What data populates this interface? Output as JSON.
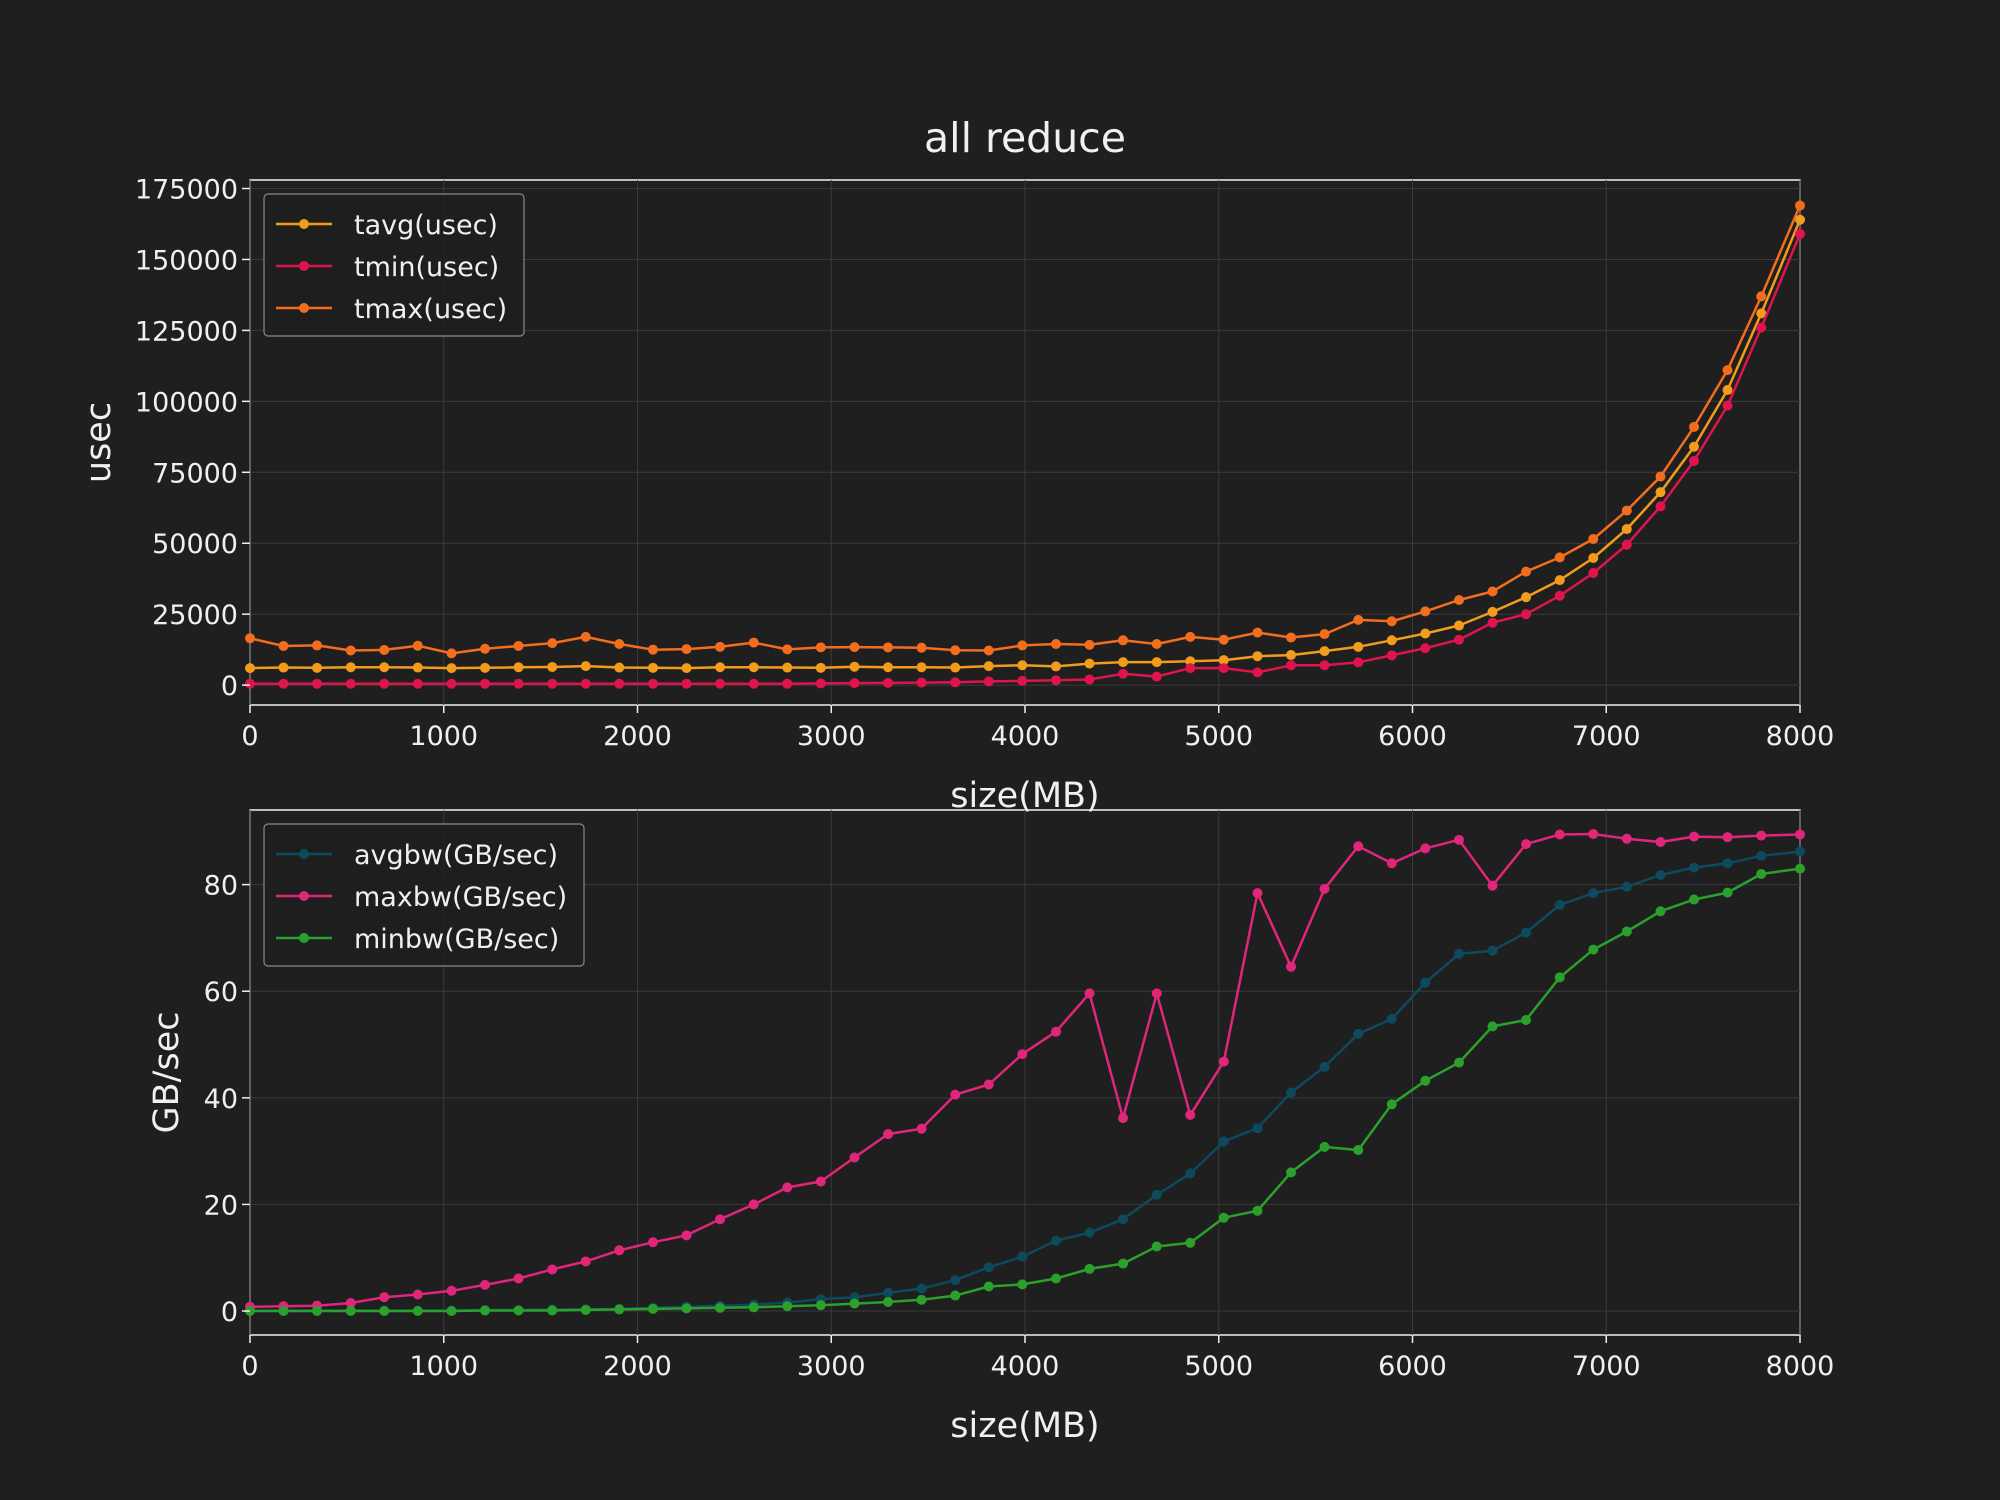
{
  "figure": {
    "title": "all reduce",
    "background": "#1f1f1f",
    "text_color": "#f0f0f0"
  },
  "chart_data": [
    {
      "type": "line",
      "xlabel": "size(MB)",
      "ylabel": "usec",
      "xlim": [
        0,
        8000
      ],
      "ylim": [
        -7000,
        178000
      ],
      "xticks": [
        0,
        1000,
        2000,
        3000,
        4000,
        5000,
        6000,
        7000,
        8000
      ],
      "yticks": [
        0,
        25000,
        50000,
        75000,
        100000,
        125000,
        150000,
        175000
      ],
      "grid": true,
      "legend_position": "top-left",
      "x": [
        0,
        173,
        346,
        520,
        693,
        866,
        1040,
        1213,
        1386,
        1560,
        1733,
        1906,
        2080,
        2253,
        2426,
        2600,
        2773,
        2946,
        3120,
        3293,
        3466,
        3640,
        3813,
        3986,
        4160,
        4333,
        4506,
        4680,
        4853,
        5026,
        5200,
        5373,
        5546,
        5720,
        5893,
        6066,
        6240,
        6413,
        6586,
        6760,
        6933,
        7106,
        7280,
        7453,
        7626,
        7800,
        8000
      ],
      "series": [
        {
          "name": "tavg(usec)",
          "color": "#f39c1b",
          "values": [
            6000,
            6200,
            6100,
            6300,
            6300,
            6200,
            6000,
            6100,
            6300,
            6400,
            6700,
            6200,
            6100,
            6000,
            6300,
            6300,
            6200,
            6100,
            6500,
            6300,
            6300,
            6200,
            6700,
            7000,
            6600,
            7600,
            8100,
            8100,
            8400,
            8800,
            10200,
            10600,
            12000,
            13500,
            15800,
            18200,
            21000,
            25800,
            31000,
            37000,
            44800,
            55000,
            68000,
            84000,
            104000,
            131000,
            164000
          ]
        },
        {
          "name": "tmin(usec)",
          "color": "#e0144c",
          "values": [
            500,
            500,
            500,
            500,
            500,
            500,
            500,
            500,
            500,
            500,
            500,
            500,
            500,
            500,
            500,
            500,
            500,
            600,
            700,
            800,
            900,
            1000,
            1300,
            1500,
            1700,
            2000,
            4000,
            3000,
            6000,
            6000,
            4500,
            7000,
            7000,
            8000,
            10500,
            13000,
            16000,
            22000,
            25000,
            31500,
            39500,
            49500,
            63000,
            79000,
            98500,
            126000,
            159000
          ]
        },
        {
          "name": "tmax(usec)",
          "color": "#f36d1f",
          "values": [
            16500,
            13800,
            14000,
            12200,
            12400,
            13900,
            11200,
            12800,
            13800,
            14800,
            17000,
            14500,
            12500,
            12700,
            13500,
            15000,
            12600,
            13300,
            13400,
            13300,
            13200,
            12300,
            12200,
            14000,
            14500,
            14200,
            15800,
            14500,
            17000,
            16000,
            18500,
            16800,
            18000,
            23000,
            22500,
            26000,
            30000,
            33000,
            40000,
            45000,
            51500,
            61500,
            73500,
            91000,
            111000,
            137000,
            169000
          ]
        }
      ]
    },
    {
      "type": "line",
      "xlabel": "size(MB)",
      "ylabel": "GB/sec",
      "xlim": [
        0,
        8000
      ],
      "ylim": [
        -4.5,
        94
      ],
      "xticks": [
        0,
        1000,
        2000,
        3000,
        4000,
        5000,
        6000,
        7000,
        8000
      ],
      "yticks": [
        0,
        20,
        40,
        60,
        80
      ],
      "grid": true,
      "legend_position": "top-left",
      "x": [
        0,
        173,
        346,
        520,
        693,
        866,
        1040,
        1213,
        1386,
        1560,
        1733,
        1906,
        2080,
        2253,
        2426,
        2600,
        2773,
        2946,
        3120,
        3293,
        3466,
        3640,
        3813,
        3986,
        4160,
        4333,
        4506,
        4680,
        4853,
        5026,
        5200,
        5373,
        5546,
        5720,
        5893,
        6066,
        6240,
        6413,
        6586,
        6760,
        6933,
        7106,
        7280,
        7453,
        7626,
        7800,
        8000
      ],
      "series": [
        {
          "name": "avgbw(GB/sec)",
          "color": "#0d4a5e",
          "values": [
            0.1,
            0.1,
            0.1,
            0.1,
            0.1,
            0.1,
            0.1,
            0.2,
            0.2,
            0.3,
            0.3,
            0.4,
            0.6,
            0.8,
            1.0,
            1.2,
            1.6,
            2.2,
            2.6,
            3.4,
            4.2,
            5.8,
            8.2,
            10.2,
            13.2,
            14.7,
            17.2,
            21.8,
            25.8,
            31.8,
            34.3,
            41.0,
            45.8,
            52.0,
            54.8,
            61.6,
            67.0,
            67.6,
            71.0,
            76.2,
            78.4,
            79.6,
            81.8,
            83.2,
            84.0,
            85.4,
            86.2
          ]
        },
        {
          "name": "maxbw(GB/sec)",
          "color": "#e0267a",
          "values": [
            0.8,
            0.9,
            1.0,
            1.5,
            2.6,
            3.1,
            3.8,
            4.9,
            6.1,
            7.8,
            9.3,
            11.4,
            12.9,
            14.2,
            17.2,
            20.0,
            23.2,
            24.3,
            28.8,
            33.2,
            34.2,
            40.6,
            42.5,
            48.2,
            52.4,
            59.6,
            36.2,
            59.6,
            36.8,
            46.8,
            78.4,
            64.6,
            79.2,
            87.2,
            84.0,
            86.8,
            88.4,
            79.8,
            87.6,
            89.4,
            89.5,
            88.6,
            88.0,
            89.0,
            88.9,
            89.2,
            89.4
          ]
        },
        {
          "name": "minbw(GB/sec)",
          "color": "#2ca02c",
          "values": [
            0.0,
            0.0,
            0.0,
            0.0,
            0.0,
            0.0,
            0.0,
            0.1,
            0.1,
            0.1,
            0.2,
            0.3,
            0.4,
            0.5,
            0.6,
            0.7,
            0.9,
            1.1,
            1.4,
            1.7,
            2.1,
            2.9,
            4.6,
            5.0,
            6.1,
            7.9,
            8.9,
            12.1,
            12.8,
            17.5,
            18.8,
            26.0,
            30.8,
            30.2,
            38.8,
            43.2,
            46.6,
            53.4,
            54.6,
            62.6,
            67.8,
            71.2,
            75.0,
            77.2,
            78.5,
            82.0,
            83.0
          ]
        }
      ]
    }
  ]
}
